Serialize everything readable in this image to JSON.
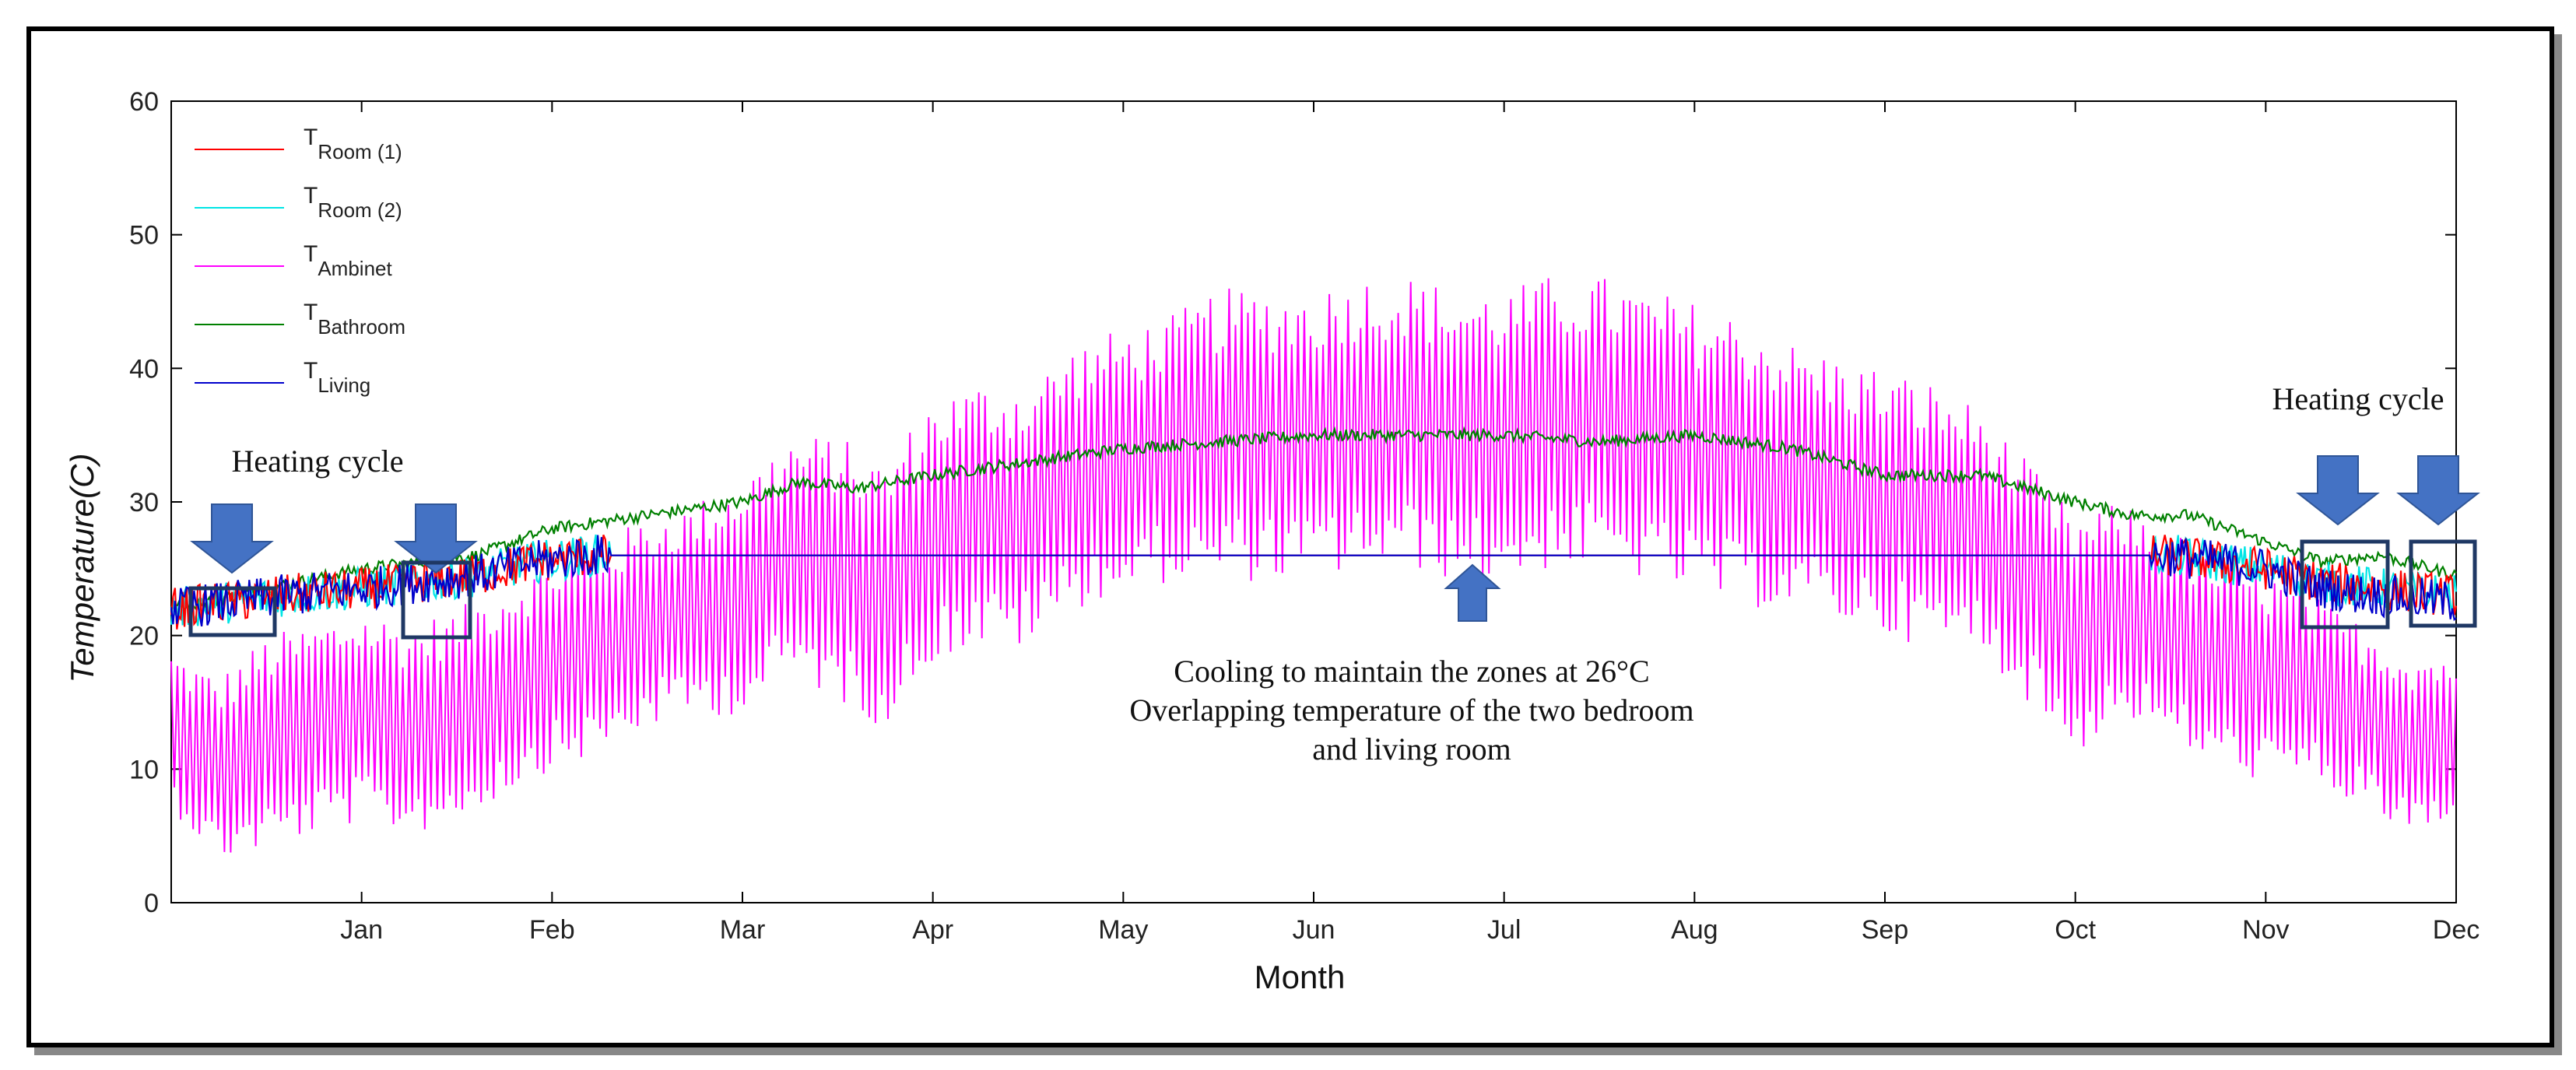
{
  "chart_data": {
    "type": "line",
    "title": "",
    "xlabel": "Month",
    "ylabel": "Temperature(C)",
    "ylim": [
      0,
      60
    ],
    "yticks": [
      0,
      10,
      20,
      30,
      40,
      50,
      60
    ],
    "xlim": [
      0,
      12
    ],
    "xticks": [
      {
        "label": "Jan",
        "pos": 1
      },
      {
        "label": "Feb",
        "pos": 2
      },
      {
        "label": "Mar",
        "pos": 3
      },
      {
        "label": "Apr",
        "pos": 4
      },
      {
        "label": "May",
        "pos": 5
      },
      {
        "label": "Jun",
        "pos": 6
      },
      {
        "label": "Jul",
        "pos": 7
      },
      {
        "label": "Aug",
        "pos": 8
      },
      {
        "label": "Sep",
        "pos": 9
      },
      {
        "label": "Oct",
        "pos": 10
      },
      {
        "label": "Nov",
        "pos": 11
      },
      {
        "label": "Dec",
        "pos": 12
      }
    ],
    "legend_position": "top-left",
    "series": [
      {
        "name": "T",
        "sub": "Room (1)",
        "color": "#ff0000",
        "x": [
          0,
          0.3,
          0.6,
          1.0,
          1.3,
          1.6,
          1.9,
          2.2,
          3.0,
          4.0,
          5.0,
          6.0,
          7.0,
          8.0,
          9.0,
          10.0,
          10.5,
          11.0,
          11.3,
          11.6,
          12.0
        ],
        "y": [
          22,
          22.5,
          23,
          23.5,
          24,
          24.5,
          25.5,
          26,
          26,
          26,
          26,
          26,
          26,
          26,
          26,
          26,
          26,
          25,
          24,
          23.5,
          23
        ]
      },
      {
        "name": "T",
        "sub": "Room (2)",
        "color": "#00e5e5",
        "x": [
          0,
          0.3,
          0.6,
          1.0,
          1.3,
          1.6,
          1.9,
          2.2,
          3.0,
          4.0,
          5.0,
          6.0,
          7.0,
          8.0,
          9.0,
          10.0,
          10.5,
          11.0,
          11.3,
          11.6,
          12.0
        ],
        "y": [
          22,
          22.5,
          23,
          23.5,
          24,
          24.5,
          25.5,
          26,
          26,
          26,
          26,
          26,
          26,
          26,
          26,
          26,
          26,
          25,
          24,
          23.5,
          23
        ]
      },
      {
        "name": "T",
        "sub": "Ambinet",
        "color": "#ff00ff",
        "x": [
          0,
          0.25,
          0.5,
          0.75,
          1.0,
          1.25,
          1.5,
          1.75,
          2.0,
          2.25,
          2.5,
          2.75,
          3.0,
          3.25,
          3.5,
          3.75,
          4.0,
          4.25,
          4.5,
          4.75,
          5.0,
          5.25,
          5.5,
          5.75,
          6.0,
          6.25,
          6.5,
          6.75,
          7.0,
          7.25,
          7.5,
          7.75,
          8.0,
          8.25,
          8.5,
          8.75,
          9.0,
          9.25,
          9.5,
          9.75,
          10.0,
          10.25,
          10.5,
          10.75,
          11.0,
          11.25,
          11.5,
          11.75,
          12.0
        ],
        "y": [
          13,
          10,
          12,
          13,
          14,
          13,
          14,
          16,
          18,
          19,
          21,
          22,
          23,
          26,
          25,
          23,
          28,
          29,
          29,
          32,
          33,
          34,
          35,
          35,
          35,
          36,
          36,
          35,
          35,
          36,
          36,
          35,
          34,
          33,
          32,
          31,
          30,
          29,
          28,
          24,
          20,
          22,
          20,
          18,
          17,
          16,
          14,
          12,
          12
        ],
        "amplitude": [
          6,
          7,
          8,
          8,
          8,
          8,
          8,
          8,
          8,
          8,
          8,
          8,
          9,
          9,
          10,
          10,
          10,
          10,
          10,
          10,
          10,
          10,
          11,
          11,
          11,
          11,
          11,
          11,
          11,
          11,
          11,
          11,
          11,
          11,
          10,
          10,
          10,
          10,
          9,
          9,
          9,
          8,
          8,
          8,
          8,
          7,
          7,
          7,
          7
        ]
      },
      {
        "name": "T",
        "sub": "Bathroom",
        "color": "#008000",
        "x": [
          0,
          0.5,
          1.0,
          1.3,
          1.6,
          2.0,
          2.5,
          3.0,
          3.3,
          3.6,
          4.0,
          4.5,
          5.0,
          5.5,
          6.0,
          6.5,
          7.0,
          7.5,
          8.0,
          8.5,
          9.0,
          9.5,
          10.0,
          10.3,
          10.6,
          11.0,
          11.3,
          11.6,
          12.0
        ],
        "y": [
          22,
          23.5,
          25,
          25.5,
          26,
          28,
          29,
          30,
          31.5,
          31,
          32,
          33,
          34,
          34.5,
          35,
          35,
          35,
          34.5,
          35,
          34,
          32,
          32,
          30,
          29,
          29,
          27,
          25.5,
          26,
          24.5
        ]
      },
      {
        "name": "T",
        "sub": "Living",
        "color": "#0000cc",
        "x": [
          0,
          0.3,
          0.6,
          1.0,
          1.3,
          1.6,
          1.9,
          2.2,
          3.0,
          4.0,
          5.0,
          6.0,
          7.0,
          8.0,
          9.0,
          10.0,
          10.5,
          11.0,
          11.3,
          11.6,
          12.0
        ],
        "y": [
          22,
          22.5,
          23,
          23.5,
          24,
          24.5,
          25.5,
          26,
          26,
          26,
          26,
          26,
          26,
          26,
          26,
          26,
          26,
          25,
          23.5,
          23,
          22.5
        ]
      }
    ],
    "annotations": {
      "heating_left": "Heating cycle",
      "heating_right": "Heating cycle",
      "cooling_line1": "Cooling to maintain the zones at 26°C",
      "cooling_line2": "Overlapping temperature of the two bedroom",
      "cooling_line3": "and living room"
    },
    "annotation_color": "#4472c4",
    "box_color": "#1f3864"
  }
}
